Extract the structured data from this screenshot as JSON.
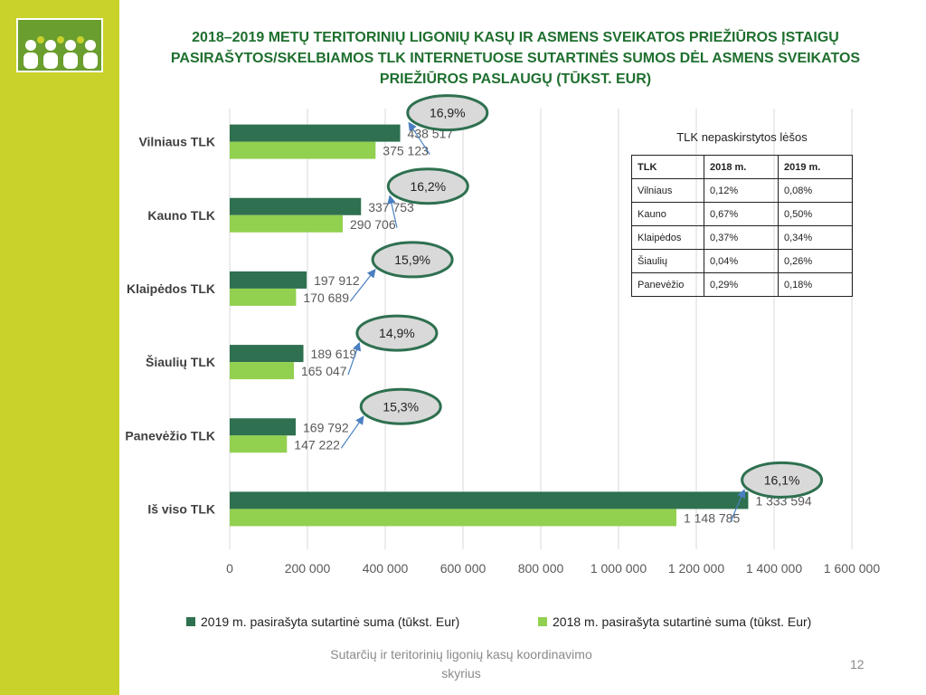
{
  "slide": {
    "title": "2018–2019 METŲ TERITORINIŲ LIGONIŲ KASŲ IR ASMENS SVEIKATOS PRIEŽIŪROS ĮSTAIGŲ PASIRAŠYTOS/SKELBIAMOS TLK INTERNETUOSE SUTARTINĖS SUMOS DĖL ASMENS SVEIKATOS PRIEŽIŪROS PASLAUGŲ (TŪKST. EUR)",
    "footer": "Sutarčių ir teritorinių ligonių kasų koordinavimo skyrius",
    "page_number": "12",
    "colors": {
      "side_bar": "#c8d22a",
      "title": "#1f6f2f"
    }
  },
  "chart_data": {
    "type": "bar",
    "orientation": "horizontal",
    "categories": [
      "Vilniaus TLK",
      "Kauno TLK",
      "Klaipėdos TLK",
      "Šiaulių TLK",
      "Panevėžio TLK",
      "Iš viso TLK"
    ],
    "series": [
      {
        "name": "2019 m. pasirašyta sutartinė suma  (tūkst. Eur)",
        "color": "#2e7050",
        "values": [
          438517,
          337753,
          197912,
          189619,
          169792,
          1333594
        ],
        "labels": [
          "438 517",
          "337 753",
          "197 912",
          "189 619",
          "169 792",
          "1 333 594"
        ]
      },
      {
        "name": "2018 m. pasirašyta sutartinė suma (tūkst. Eur)",
        "color": "#92d050",
        "values": [
          375123,
          290706,
          170689,
          165047,
          147222,
          1148785
        ],
        "labels": [
          "375 123",
          "290 706",
          "170 689",
          "165 047",
          "147 222",
          "1 148 785"
        ]
      }
    ],
    "growth_callouts": [
      "16,9%",
      "16,2%",
      "15,9%",
      "14,9%",
      "15,3%",
      "16,1%"
    ],
    "xlim": [
      0,
      1600000
    ],
    "xticks": [
      0,
      200000,
      400000,
      600000,
      800000,
      1000000,
      1200000,
      1400000,
      1600000
    ],
    "xtick_labels": [
      "0",
      "200 000",
      "400 000",
      "600 000",
      "800 000",
      "1 000 000",
      "1 200 000",
      "1 400 000",
      "1 600 000"
    ],
    "grid": "vertical",
    "legend": "bottom"
  },
  "table": {
    "title": "TLK nepaskirstytos lėšos",
    "headers": [
      "TLK",
      "2018 m.",
      "2019 m."
    ],
    "rows": [
      [
        "Vilniaus",
        "0,12%",
        "0,08%"
      ],
      [
        "Kauno",
        "0,67%",
        "0,50%"
      ],
      [
        "Klaipėdos",
        "0,37%",
        "0,34%"
      ],
      [
        "Šiaulių",
        "0,04%",
        "0,26%"
      ],
      [
        "Panevėžio",
        "0,29%",
        "0,18%"
      ]
    ]
  }
}
